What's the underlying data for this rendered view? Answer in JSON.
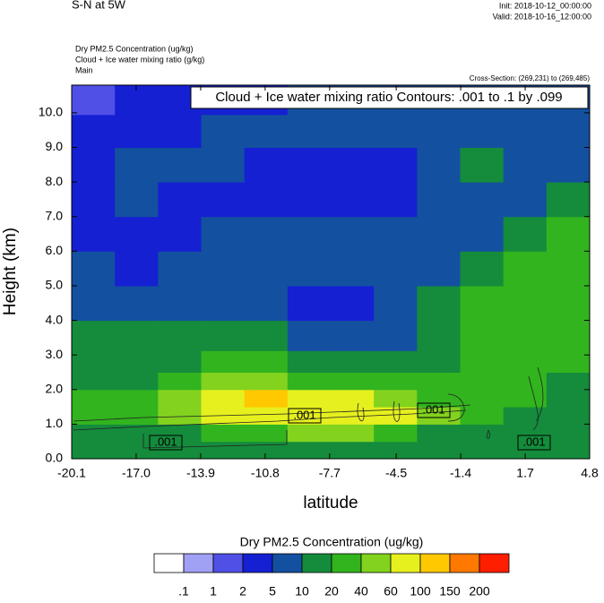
{
  "chart_data": {
    "type": "contourf",
    "title": "S-N at 5W",
    "init": "Init: 2018-10-12_00:00:00",
    "valid": "Valid: 2018-10-16_12:00:00",
    "field_names": [
      "Dry PM2.5 Concentration   (ug/kg)",
      "Cloud + Ice water mixing ratio   (g/kg)",
      "Main"
    ],
    "cross_section": "Cross-Section: (269,231) to (269,485)",
    "contour_note": "Cloud + Ice water mixing ratio Contours: .001 to .1 by .099",
    "contour_labels": [
      ".001",
      ".001",
      ".001",
      ".001"
    ],
    "x_label": "latitude",
    "y_label": "Height (km)",
    "xlim": [
      -20.1,
      4.8
    ],
    "ylim": [
      0,
      10.8
    ],
    "xticks": [
      -20.1,
      {
        "value": -17,
        "label": "-17.0"
      },
      -13.9,
      -10.8,
      -7.7,
      -4.5,
      -1.4,
      1.7,
      4.8
    ],
    "yticks": [
      {
        "value": 0,
        "label": "0.0"
      },
      {
        "value": 1,
        "label": "1.0"
      },
      {
        "value": 2,
        "label": "2.0"
      },
      {
        "value": 3,
        "label": "3.0"
      },
      {
        "value": 4,
        "label": "4.0"
      },
      {
        "value": 5,
        "label": "5.0"
      },
      {
        "value": 6,
        "label": "6.0"
      },
      {
        "value": 7,
        "label": "7.0"
      },
      {
        "value": 8,
        "label": "8.0"
      },
      {
        "value": 9,
        "label": "9.0"
      },
      {
        "value": 10,
        "label": "10.0"
      }
    ],
    "x": [
      -19.06,
      -16.99,
      -14.91,
      -12.84,
      -10.76,
      -8.69,
      -6.61,
      -4.54,
      -2.46,
      -0.39,
      1.69,
      3.76
    ],
    "y": [
      0.25,
      0.75,
      1.25,
      1.75,
      2.25,
      2.75,
      3.5,
      4.5,
      5.5,
      6.5,
      7.5,
      8.5,
      9.5,
      10.4
    ],
    "z": [
      [
        15,
        15,
        15,
        15,
        15,
        15,
        15,
        15,
        15,
        15,
        15,
        15
      ],
      [
        15,
        15,
        15,
        25,
        35,
        45,
        45,
        25,
        15,
        15,
        15,
        15
      ],
      [
        30,
        30,
        45,
        70,
        70,
        70,
        70,
        70,
        45,
        30,
        15,
        15
      ],
      [
        30,
        25,
        50,
        75,
        110,
        70,
        70,
        50,
        35,
        25,
        20,
        15
      ],
      [
        15,
        15,
        25,
        45,
        45,
        35,
        35,
        30,
        20,
        25,
        20,
        15
      ],
      [
        15,
        12,
        15,
        25,
        25,
        15,
        15,
        12,
        15,
        25,
        25,
        25
      ],
      [
        12,
        12,
        12,
        15,
        12,
        7,
        7,
        8,
        12,
        25,
        25,
        25
      ],
      [
        7,
        7,
        7,
        7,
        7,
        3,
        3,
        7,
        12,
        25,
        25,
        35
      ],
      [
        7,
        4,
        7,
        7,
        7,
        7,
        7,
        7,
        7,
        15,
        25,
        35
      ],
      [
        4,
        3,
        4,
        7,
        7,
        7,
        7,
        7,
        7,
        7,
        15,
        25
      ],
      [
        3,
        7,
        3,
        4,
        3,
        3,
        3,
        4,
        7,
        7,
        7,
        15
      ],
      [
        3,
        7,
        7,
        7,
        3,
        3,
        3,
        3,
        7,
        12,
        7,
        7
      ],
      [
        4,
        3,
        3,
        7,
        7,
        7,
        7,
        7,
        7,
        7,
        7,
        7
      ],
      [
        1.5,
        3,
        3,
        3,
        3,
        7,
        7,
        7,
        7,
        7,
        7,
        7
      ]
    ],
    "colorbar_title": "Dry PM2.5 Concentration  (ug/kg)",
    "levels": [
      {
        "value": 0.1,
        "label": ".1"
      },
      1,
      2,
      5,
      10,
      20,
      40,
      60,
      100,
      150,
      200
    ],
    "colors": [
      "#ffffff",
      "#a0a0f5",
      "#5050e6",
      "#1420d2",
      "#1450a0",
      "#148c3c",
      "#32b41e",
      "#82d21e",
      "#e6f01e",
      "#ffc800",
      "#ff7800",
      "#ff1e00"
    ]
  }
}
